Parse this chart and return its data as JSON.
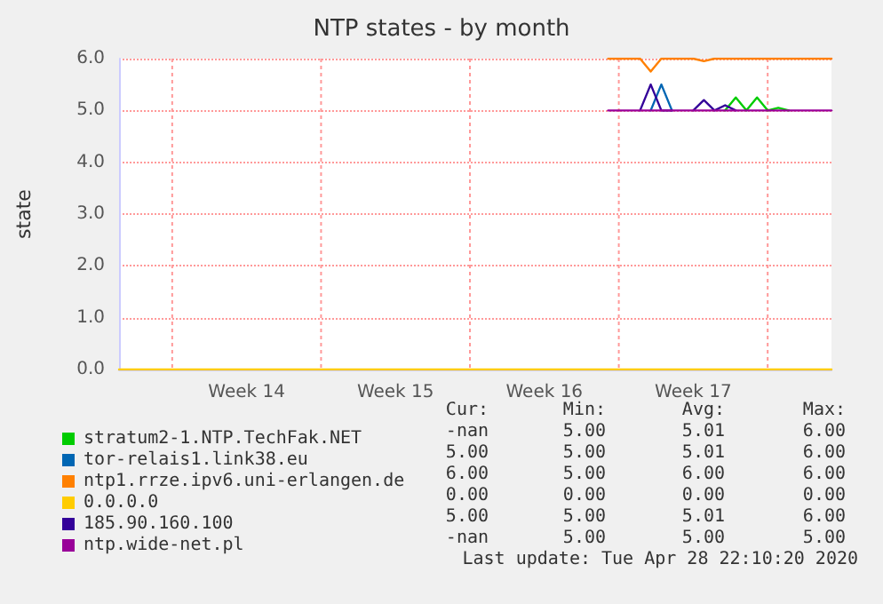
{
  "chart_data": {
    "type": "line",
    "title": "NTP states - by month",
    "ylabel": "state",
    "categories": [
      null,
      null,
      null,
      null,
      null,
      null,
      null,
      null,
      null,
      null,
      null,
      null,
      "Week 14",
      null,
      null,
      null,
      null,
      null,
      null,
      null,
      null,
      null,
      null,
      null,
      null,
      null,
      "Week 15",
      null,
      null,
      null,
      null,
      null,
      null,
      null,
      null,
      null,
      null,
      null,
      null,
      null,
      "Week 16",
      null,
      null,
      null,
      null,
      null,
      null,
      null,
      null,
      null,
      null,
      null,
      null,
      null,
      "Week 17",
      null,
      null,
      null,
      null,
      null,
      null,
      null,
      null,
      null,
      null,
      null,
      null,
      null
    ],
    "ylim": [
      0,
      6
    ],
    "yticks": [
      {
        "value": 0,
        "label": "0.0"
      },
      {
        "value": 1,
        "label": "1.0"
      },
      {
        "value": 2,
        "label": "2.0"
      },
      {
        "value": 3,
        "label": "3.0"
      },
      {
        "value": 4,
        "label": "4.0"
      },
      {
        "value": 5,
        "label": "5.0"
      },
      {
        "value": 6,
        "label": "6.0"
      }
    ],
    "grid": true,
    "legend": "bottom left",
    "marker": "none",
    "series": [
      {
        "name": "stratum2-1.NTP.TechFak.NET",
        "color": "#00cc00",
        "values": [
          null,
          null,
          null,
          null,
          null,
          null,
          null,
          null,
          null,
          null,
          null,
          null,
          null,
          null,
          null,
          null,
          null,
          null,
          null,
          null,
          null,
          null,
          null,
          null,
          null,
          null,
          null,
          null,
          null,
          null,
          null,
          null,
          null,
          null,
          null,
          null,
          null,
          null,
          null,
          null,
          null,
          null,
          null,
          null,
          null,
          null,
          null,
          null,
          null,
          null,
          null,
          null,
          null,
          null,
          null,
          null,
          null,
          5,
          5.25,
          5,
          5.25,
          5,
          5.05,
          5,
          null,
          null,
          null,
          null
        ]
      },
      {
        "name": "tor-relais1.link38.eu",
        "color": "#0066b3",
        "values": [
          null,
          null,
          null,
          null,
          null,
          null,
          null,
          null,
          null,
          null,
          null,
          null,
          null,
          null,
          null,
          null,
          null,
          null,
          null,
          null,
          null,
          null,
          null,
          null,
          null,
          null,
          null,
          null,
          null,
          null,
          null,
          null,
          null,
          null,
          null,
          null,
          null,
          null,
          null,
          null,
          null,
          null,
          null,
          null,
          null,
          null,
          null,
          null,
          null,
          null,
          5,
          5.5,
          5,
          null,
          null,
          null,
          null,
          null,
          null,
          null,
          null,
          null,
          null,
          null,
          null,
          null,
          null,
          null
        ]
      },
      {
        "name": "ntp1.rrze.ipv6.uni-erlangen.de",
        "color": "#ff8000",
        "values": [
          null,
          null,
          null,
          null,
          null,
          null,
          null,
          null,
          null,
          null,
          null,
          null,
          null,
          null,
          null,
          null,
          null,
          null,
          null,
          null,
          null,
          null,
          null,
          null,
          null,
          null,
          null,
          null,
          null,
          null,
          null,
          null,
          null,
          null,
          null,
          null,
          null,
          null,
          null,
          null,
          null,
          null,
          null,
          null,
          null,
          null,
          6,
          6,
          6,
          6,
          5.75,
          6,
          6,
          6,
          6,
          5.95,
          6,
          6,
          6,
          6,
          6,
          6,
          6,
          6,
          6,
          6,
          6,
          6
        ]
      },
      {
        "name": "0.0.0.0",
        "color": "#ffcc00",
        "values": [
          0,
          0,
          0,
          0,
          0,
          0,
          0,
          0,
          0,
          0,
          0,
          0,
          0,
          0,
          0,
          0,
          0,
          0,
          0,
          0,
          0,
          0,
          0,
          0,
          0,
          0,
          0,
          0,
          0,
          0,
          0,
          0,
          0,
          0,
          0,
          0,
          0,
          0,
          0,
          0,
          0,
          0,
          0,
          0,
          0,
          0,
          0,
          0,
          0,
          0,
          0,
          0,
          0,
          0,
          0,
          0,
          0,
          0,
          0,
          0,
          0,
          0,
          0,
          0,
          0,
          0,
          0,
          0
        ]
      },
      {
        "name": "185.90.160.100",
        "color": "#330099",
        "values": [
          null,
          null,
          null,
          null,
          null,
          null,
          null,
          null,
          null,
          null,
          null,
          null,
          null,
          null,
          null,
          null,
          null,
          null,
          null,
          null,
          null,
          null,
          null,
          null,
          null,
          null,
          null,
          null,
          null,
          null,
          null,
          null,
          null,
          null,
          null,
          null,
          null,
          null,
          null,
          null,
          null,
          null,
          null,
          null,
          null,
          null,
          null,
          null,
          null,
          5,
          5.5,
          5,
          5,
          null,
          5,
          5.2,
          5,
          5.1,
          5,
          null,
          null,
          null,
          null,
          null,
          null,
          null,
          null,
          null
        ]
      },
      {
        "name": "ntp.wide-net.pl",
        "color": "#990099",
        "values": [
          null,
          null,
          null,
          null,
          null,
          null,
          null,
          null,
          null,
          null,
          null,
          null,
          null,
          null,
          null,
          null,
          null,
          null,
          null,
          null,
          null,
          null,
          null,
          null,
          null,
          null,
          null,
          null,
          null,
          null,
          null,
          null,
          null,
          null,
          null,
          null,
          null,
          null,
          null,
          null,
          null,
          null,
          null,
          null,
          null,
          null,
          5,
          5,
          5,
          5,
          5,
          5,
          5,
          5,
          5,
          5,
          5,
          5,
          5,
          5,
          5,
          5,
          5,
          5,
          5,
          5,
          5,
          5
        ]
      }
    ],
    "annotations": [
      "Cur:",
      "Min:",
      "Avg:",
      "Max:",
      "-nan",
      "5.00",
      "5.01",
      "6.00",
      "5.00",
      "5.00",
      "5.01",
      "6.00",
      "6.00",
      "5.00",
      "6.00",
      "6.00",
      "0.00",
      "0.00",
      "0.00",
      "0.00",
      "5.00",
      "5.00",
      "5.01",
      "6.00",
      "-nan",
      "5.00",
      "5.00",
      "5.00",
      "Last update: Tue Apr 28 22:10:20 2020"
    ]
  }
}
